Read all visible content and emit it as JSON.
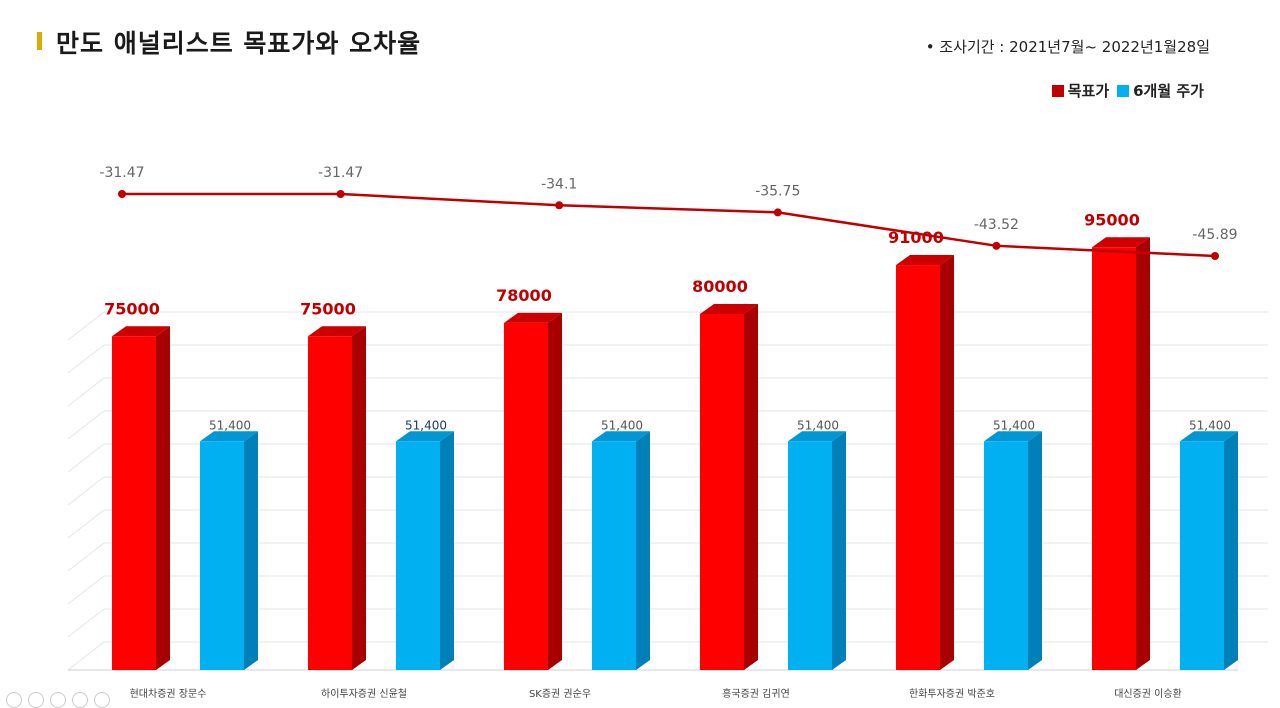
{
  "header": {
    "title": "만도 애널리스트 목표가와 오차율",
    "period": "조사기간 : 2021년7월~ 2022년1월28일"
  },
  "legend": {
    "target_label": "목표가",
    "price_label": "6개월 주가"
  },
  "colors": {
    "target": "#ff0000",
    "price": "#00b0f0",
    "line": "#c00000",
    "accent": "#e0a800"
  },
  "chart_data": {
    "type": "bar",
    "categories": [
      "현대차증권 장문수",
      "하이투자증권 신윤철",
      "SK증권 권순우",
      "흥국증권 김귀연",
      "한화투자증권 박준호",
      "대신증권 이승환"
    ],
    "series": [
      {
        "name": "목표가",
        "values": [
          75000,
          75000,
          78000,
          80000,
          91000,
          95000
        ],
        "labels": [
          "75000",
          "75000",
          "78000",
          "80000",
          "91000",
          "95000"
        ]
      },
      {
        "name": "6개월 주가",
        "values": [
          51400,
          51400,
          51400,
          51400,
          51400,
          51400
        ],
        "labels": [
          "51,400",
          "51,400",
          "51,400",
          "51,400",
          "51,400",
          "51,400"
        ]
      }
    ],
    "error_rate": {
      "values": [
        -31.47,
        -31.47,
        -34.1,
        -35.75,
        -43.52,
        -45.89
      ],
      "labels": [
        "-31.47",
        "-31.47",
        "-34.1",
        "-35.75",
        "-43.52",
        "-45.89"
      ]
    },
    "ylim": [
      0,
      100000
    ],
    "grid": true
  }
}
